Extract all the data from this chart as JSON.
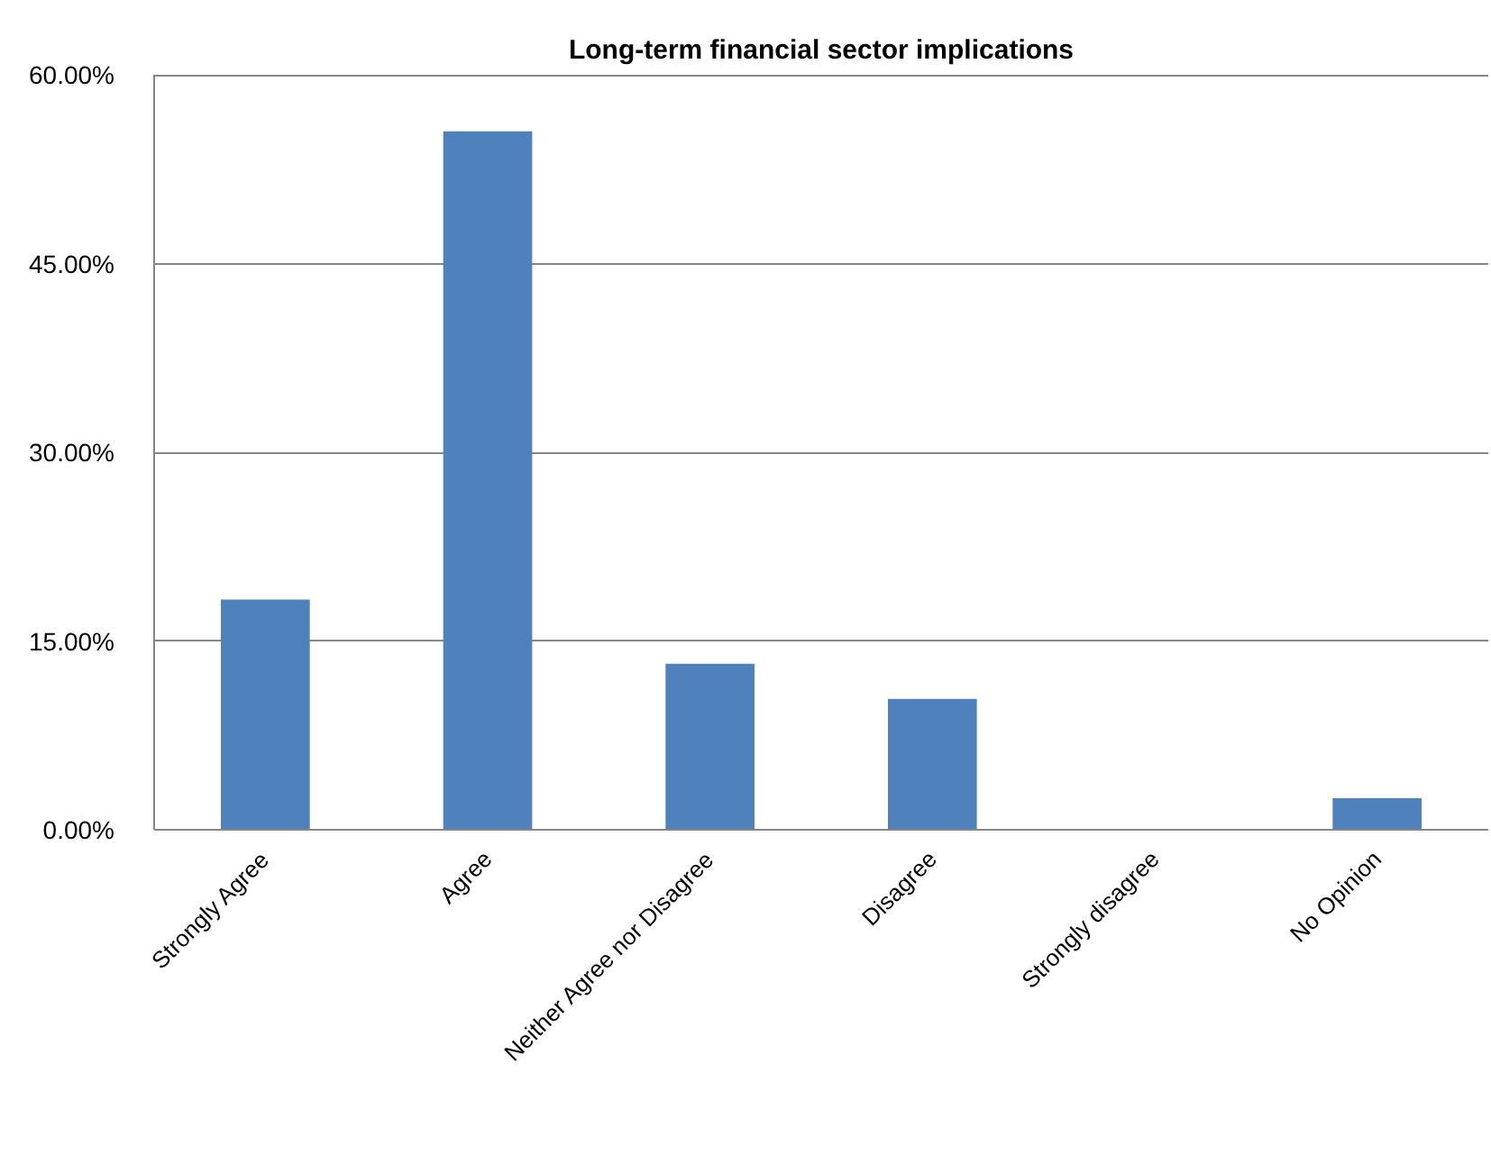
{
  "chart_data": {
    "type": "bar",
    "title": "Long-term financial sector implications",
    "categories": [
      "Strongly Agree",
      "Agree",
      "Neither Agree nor Disagree",
      "Disagree",
      "Strongly disagree",
      "No Opinion"
    ],
    "values": [
      18.3,
      55.5,
      13.2,
      10.4,
      0,
      2.5
    ],
    "color": "#4f81bd",
    "ylim": [
      0,
      60
    ],
    "yticks": [
      {
        "value": 0,
        "label": "0.00%"
      },
      {
        "value": 15,
        "label": "15.00%"
      },
      {
        "value": 30,
        "label": "30.00%"
      },
      {
        "value": 45,
        "label": "45.00%"
      },
      {
        "value": 60,
        "label": "60.00%"
      }
    ],
    "grid": "y"
  }
}
